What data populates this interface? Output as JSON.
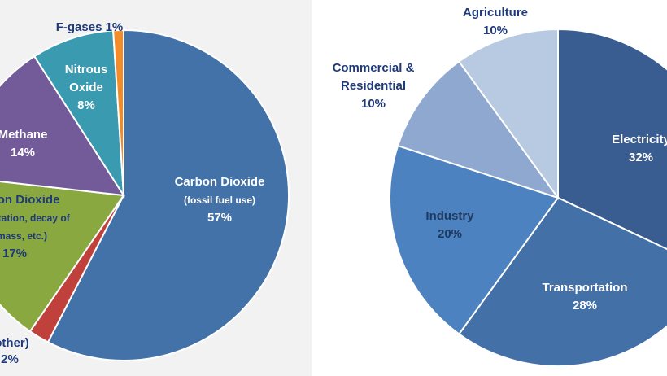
{
  "colors": {
    "left_panel_bg": "#f2f2f2",
    "right_panel_bg": "#ffffff"
  },
  "chart_data": [
    {
      "type": "pie",
      "title": "",
      "start_angle_deg": 0,
      "slices": [
        {
          "label_lines": [
            "Carbon Dioxide",
            "(fossil fuel use)"
          ],
          "value": 57,
          "value_text": "57%",
          "color": "#4272a8",
          "text_color": "#ffffff",
          "label_inside": true
        },
        {
          "label_lines": [],
          "value": 2,
          "value_text": "",
          "color": "#c0403c",
          "text_color": "#1f3a78",
          "label_inside": false
        },
        {
          "label_lines": [
            "Carbon Dioxide",
            "(deforestation, decay of",
            "biomass, etc.)"
          ],
          "value": 17,
          "value_text": "17%",
          "color": "#8aa840",
          "text_color": "#1f3a78",
          "label_inside": true
        },
        {
          "label_lines": [
            "Methane"
          ],
          "value": 14,
          "value_text": "14%",
          "color": "#735a99",
          "text_color": "#ffffff",
          "label_inside": true
        },
        {
          "label_lines": [
            "Nitrous",
            "Oxide"
          ],
          "value": 8,
          "value_text": "8%",
          "color": "#3a9ab0",
          "text_color": "#ffffff",
          "label_inside": true
        },
        {
          "label_lines": [
            "F-gases 1%"
          ],
          "value": 1,
          "value_text": "",
          "color": "#f28c28",
          "text_color": "#1f3a78",
          "label_inside": false
        }
      ],
      "outside_labels": [
        {
          "lines": [
            "(other)",
            "2%"
          ],
          "color": "#1f3a78"
        }
      ]
    },
    {
      "type": "pie",
      "title": "",
      "start_angle_deg": 0,
      "slices": [
        {
          "label_lines": [
            "Electricity"
          ],
          "value": 32,
          "value_text": "32%",
          "color": "#395d91",
          "text_color": "#ffffff",
          "label_inside": true
        },
        {
          "label_lines": [
            "Transportation"
          ],
          "value": 28,
          "value_text": "28%",
          "color": "#4470a8",
          "text_color": "#ffffff",
          "label_inside": true
        },
        {
          "label_lines": [
            "Industry"
          ],
          "value": 20,
          "value_text": "20%",
          "color": "#4d82c0",
          "text_color": "#1f3a60",
          "label_inside": true
        },
        {
          "label_lines": [
            "Commercial &",
            "Residential"
          ],
          "value": 10,
          "value_text": "10%",
          "color": "#8fa8cf",
          "text_color": "#1f3a78",
          "label_inside": false
        },
        {
          "label_lines": [
            "Agriculture"
          ],
          "value": 10,
          "value_text": "10%",
          "color": "#b8c9e2",
          "text_color": "#1f3a78",
          "label_inside": false
        }
      ]
    }
  ]
}
